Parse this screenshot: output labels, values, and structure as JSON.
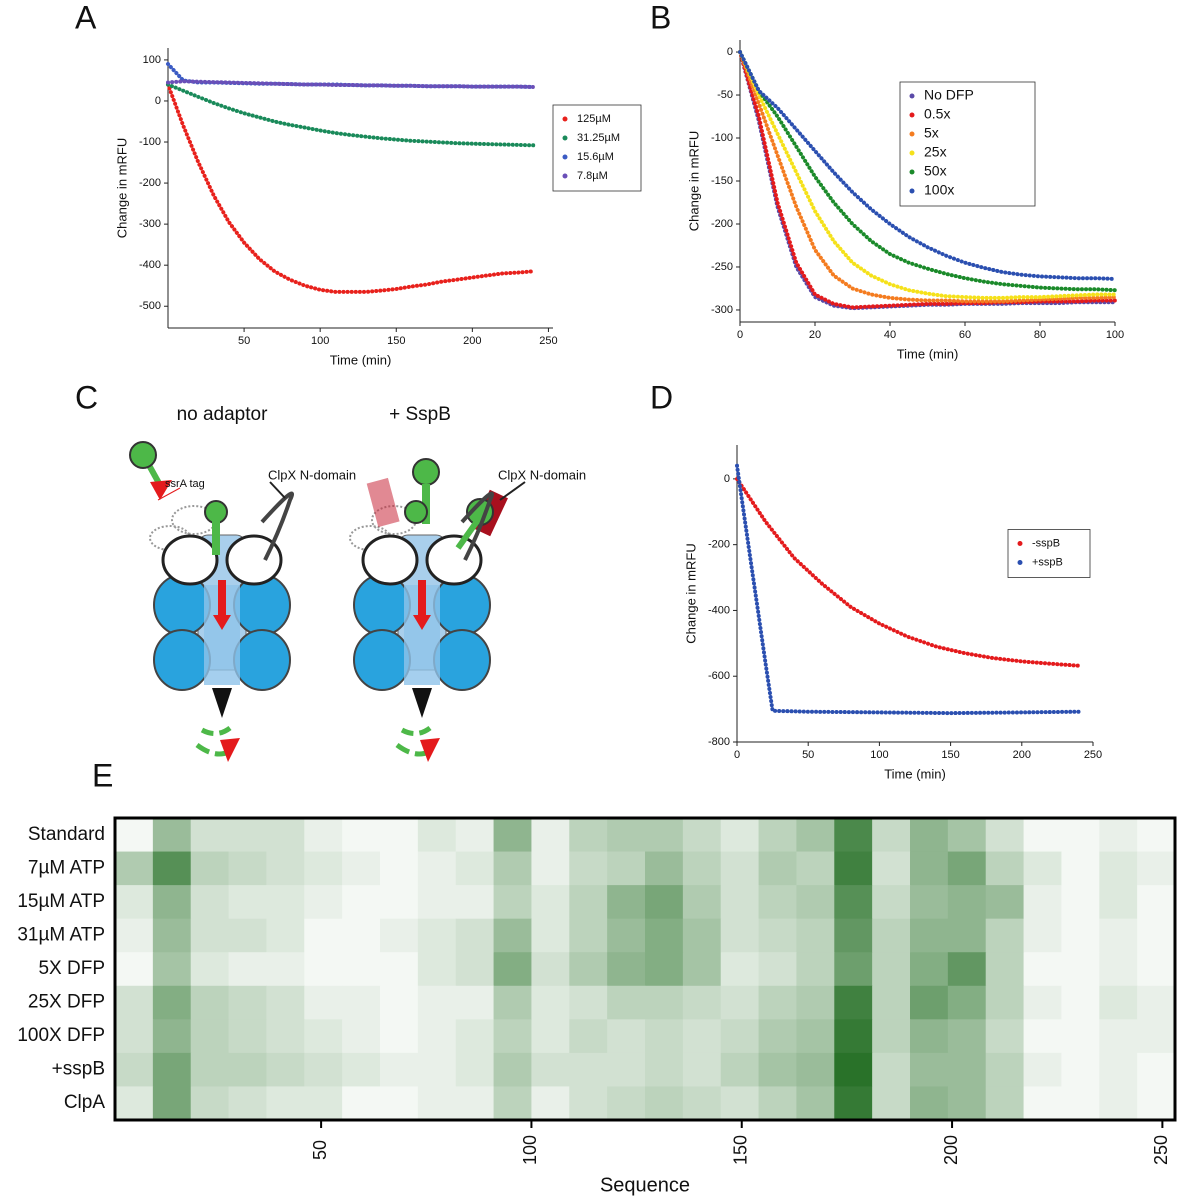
{
  "chart_data": [
    {
      "panel": "A",
      "type": "line",
      "xlabel": "Time (min)",
      "ylabel": "Change in mRFU",
      "xlim": [
        0,
        253
      ],
      "ylim": [
        -553,
        129
      ],
      "xticks": [
        50,
        100,
        150,
        200,
        250
      ],
      "yticks": [
        -500,
        -400,
        -300,
        -200,
        -100,
        0,
        100
      ],
      "legend": "outside right",
      "x": [
        0,
        10,
        20,
        30,
        40,
        50,
        60,
        70,
        80,
        90,
        100,
        110,
        120,
        130,
        140,
        150,
        160,
        170,
        180,
        190,
        200,
        210,
        220,
        230,
        240
      ],
      "series": [
        {
          "name": "125µM",
          "color": "#e8211c",
          "values": [
            40,
            -60,
            -150,
            -230,
            -295,
            -345,
            -385,
            -415,
            -435,
            -450,
            -460,
            -465,
            -465,
            -465,
            -462,
            -458,
            -452,
            -447,
            -440,
            -435,
            -430,
            -425,
            -420,
            -418,
            -415
          ]
        },
        {
          "name": "31.25µM",
          "color": "#1a8a5a",
          "values": [
            40,
            25,
            10,
            -5,
            -18,
            -30,
            -40,
            -50,
            -58,
            -65,
            -72,
            -78,
            -83,
            -87,
            -91,
            -94,
            -97,
            -99,
            -101,
            -103,
            -104,
            -105,
            -106,
            -107,
            -108
          ]
        },
        {
          "name": "15.6µM",
          "color": "#3b5bc4",
          "values": [
            90,
            50,
            45,
            45,
            44,
            43,
            42,
            42,
            41,
            40,
            40,
            40,
            39,
            38,
            38,
            37,
            37,
            36,
            36,
            36,
            35,
            35,
            35,
            35,
            34
          ]
        },
        {
          "name": "7.8µM",
          "color": "#6a4fb8",
          "values": [
            45,
            48,
            47,
            46,
            45,
            44,
            43,
            42,
            41,
            40,
            40,
            39,
            39,
            38,
            38,
            37,
            37,
            36,
            36,
            36,
            35,
            35,
            35,
            35,
            34
          ]
        }
      ]
    },
    {
      "panel": "B",
      "type": "line",
      "xlabel": "Time (min)",
      "ylabel": "Change in mRFU",
      "xlim": [
        0,
        100
      ],
      "ylim": [
        -314,
        14
      ],
      "xticks": [
        0,
        20,
        40,
        60,
        80,
        100
      ],
      "yticks": [
        -300,
        -250,
        -200,
        -150,
        -100,
        -50,
        0
      ],
      "legend": "upper right",
      "x": [
        0,
        5,
        10,
        15,
        20,
        25,
        30,
        35,
        40,
        45,
        50,
        55,
        60,
        65,
        70,
        75,
        80,
        85,
        90,
        95,
        100
      ],
      "series": [
        {
          "name": "No DFP",
          "color": "#5a4aa8",
          "values": [
            0,
            -80,
            -180,
            -250,
            -285,
            -295,
            -298,
            -297,
            -296,
            -295,
            -294,
            -294,
            -293,
            -293,
            -293,
            -292,
            -292,
            -292,
            -291,
            -291,
            -291
          ]
        },
        {
          "name": "0.5x",
          "color": "#e41a1c",
          "values": [
            0,
            -75,
            -175,
            -245,
            -282,
            -293,
            -297,
            -296,
            -295,
            -294,
            -293,
            -293,
            -292,
            -292,
            -291,
            -291,
            -290,
            -290,
            -290,
            -289,
            -289
          ]
        },
        {
          "name": "5x",
          "color": "#f47c20",
          "values": [
            0,
            -60,
            -120,
            -180,
            -230,
            -260,
            -275,
            -282,
            -286,
            -288,
            -289,
            -289,
            -290,
            -290,
            -290,
            -289,
            -288,
            -287,
            -286,
            -286,
            -285
          ]
        },
        {
          "name": "25x",
          "color": "#f5e11a",
          "values": [
            0,
            -50,
            -95,
            -140,
            -185,
            -220,
            -245,
            -260,
            -270,
            -277,
            -281,
            -284,
            -285,
            -286,
            -286,
            -285,
            -285,
            -284,
            -283,
            -282,
            -282
          ]
        },
        {
          "name": "50x",
          "color": "#1b8a2a",
          "values": [
            0,
            -45,
            -75,
            -110,
            -145,
            -175,
            -200,
            -220,
            -235,
            -245,
            -252,
            -258,
            -263,
            -267,
            -270,
            -272,
            -274,
            -275,
            -276,
            -276,
            -277
          ]
        },
        {
          "name": "100x",
          "color": "#2b4fb0",
          "values": [
            0,
            -45,
            -65,
            -90,
            -115,
            -140,
            -163,
            -183,
            -200,
            -215,
            -227,
            -237,
            -245,
            -251,
            -256,
            -259,
            -261,
            -262,
            -263,
            -263,
            -264
          ]
        }
      ]
    },
    {
      "panel": "D",
      "type": "line",
      "xlabel": "Time (min)",
      "ylabel": "Change in mRFU",
      "xlim": [
        0,
        250
      ],
      "ylim": [
        -800,
        103
      ],
      "xticks": [
        0,
        50,
        100,
        150,
        200,
        250
      ],
      "yticks": [
        -800,
        -600,
        -400,
        -200,
        0
      ],
      "legend": "center right",
      "series": [
        {
          "name": "-sspB",
          "color": "#e41a1c",
          "x": [
            0,
            20,
            40,
            60,
            80,
            100,
            120,
            140,
            160,
            180,
            200,
            220,
            240
          ],
          "values": [
            0,
            -130,
            -240,
            -320,
            -390,
            -440,
            -480,
            -510,
            -530,
            -545,
            -555,
            -562,
            -568
          ]
        },
        {
          "name": "+sspB",
          "color": "#2b4fb0",
          "x": [
            0,
            5,
            10,
            15,
            20,
            25,
            50,
            100,
            150,
            200,
            240
          ],
          "values": [
            40,
            -110,
            -260,
            -410,
            -560,
            -705,
            -708,
            -710,
            -712,
            -710,
            -708
          ]
        }
      ]
    },
    {
      "panel": "E",
      "type": "heatmap",
      "xlabel": "Sequence",
      "xlim": [
        1,
        253
      ],
      "xticks": [
        50,
        100,
        150,
        200,
        250
      ],
      "color_min": "#ffffff",
      "color_max": "#1e6b1e",
      "bins": [
        1,
        10,
        19,
        28,
        37,
        46,
        55,
        64,
        73,
        82,
        91,
        100,
        109,
        118,
        127,
        136,
        145,
        154,
        163,
        172,
        181,
        190,
        199,
        208,
        217,
        226,
        235,
        244,
        253
      ],
      "rows": [
        "Standard",
        "7µM ATP",
        "15µM ATP",
        "31µM ATP",
        "5X DFP",
        "25X DFP",
        "100X DFP",
        "+sspB",
        "ClpA"
      ],
      "values": [
        [
          0.05,
          0.45,
          0.2,
          0.2,
          0.2,
          0.1,
          0.05,
          0.05,
          0.15,
          0.1,
          0.5,
          0.1,
          0.3,
          0.35,
          0.35,
          0.25,
          0.15,
          0.3,
          0.4,
          0.8,
          0.25,
          0.5,
          0.4,
          0.2,
          0.05,
          0.05,
          0.1,
          0.05
        ],
        [
          0.35,
          0.75,
          0.3,
          0.25,
          0.2,
          0.15,
          0.1,
          0.05,
          0.1,
          0.15,
          0.35,
          0.1,
          0.25,
          0.3,
          0.45,
          0.3,
          0.2,
          0.35,
          0.3,
          0.85,
          0.2,
          0.5,
          0.6,
          0.3,
          0.15,
          0.05,
          0.15,
          0.1
        ],
        [
          0.15,
          0.5,
          0.2,
          0.15,
          0.15,
          0.1,
          0.05,
          0.05,
          0.1,
          0.1,
          0.3,
          0.15,
          0.3,
          0.5,
          0.6,
          0.35,
          0.2,
          0.3,
          0.35,
          0.75,
          0.25,
          0.45,
          0.5,
          0.45,
          0.1,
          0.05,
          0.15,
          0.05
        ],
        [
          0.1,
          0.45,
          0.2,
          0.2,
          0.15,
          0.05,
          0.05,
          0.1,
          0.15,
          0.2,
          0.45,
          0.15,
          0.3,
          0.45,
          0.55,
          0.4,
          0.2,
          0.25,
          0.3,
          0.7,
          0.3,
          0.5,
          0.5,
          0.3,
          0.1,
          0.05,
          0.1,
          0.05
        ],
        [
          0.05,
          0.4,
          0.15,
          0.1,
          0.1,
          0.05,
          0.05,
          0.05,
          0.15,
          0.2,
          0.55,
          0.2,
          0.35,
          0.5,
          0.55,
          0.4,
          0.15,
          0.2,
          0.3,
          0.65,
          0.3,
          0.55,
          0.7,
          0.3,
          0.05,
          0.05,
          0.1,
          0.05
        ],
        [
          0.2,
          0.55,
          0.3,
          0.25,
          0.2,
          0.1,
          0.1,
          0.05,
          0.1,
          0.1,
          0.35,
          0.15,
          0.2,
          0.3,
          0.3,
          0.25,
          0.2,
          0.3,
          0.35,
          0.85,
          0.3,
          0.65,
          0.55,
          0.3,
          0.1,
          0.05,
          0.15,
          0.1
        ],
        [
          0.2,
          0.5,
          0.3,
          0.25,
          0.2,
          0.15,
          0.1,
          0.05,
          0.1,
          0.15,
          0.3,
          0.15,
          0.25,
          0.2,
          0.25,
          0.2,
          0.25,
          0.35,
          0.4,
          0.9,
          0.3,
          0.5,
          0.45,
          0.25,
          0.05,
          0.05,
          0.1,
          0.1
        ],
        [
          0.25,
          0.6,
          0.3,
          0.3,
          0.25,
          0.2,
          0.15,
          0.1,
          0.1,
          0.15,
          0.35,
          0.2,
          0.2,
          0.2,
          0.25,
          0.2,
          0.3,
          0.4,
          0.45,
          0.95,
          0.25,
          0.45,
          0.45,
          0.3,
          0.1,
          0.05,
          0.1,
          0.05
        ],
        [
          0.15,
          0.6,
          0.25,
          0.2,
          0.15,
          0.15,
          0.05,
          0.05,
          0.1,
          0.1,
          0.3,
          0.1,
          0.2,
          0.25,
          0.3,
          0.25,
          0.2,
          0.3,
          0.4,
          0.9,
          0.25,
          0.5,
          0.45,
          0.3,
          0.05,
          0.05,
          0.1,
          0.05
        ]
      ]
    }
  ],
  "diagram": {
    "panel": "C",
    "left_title": "no adaptor",
    "right_title": "+ SspB",
    "ssra_label": "ssrA tag",
    "ndomain_labels": [
      "ClpX N-domain",
      "ClpX N-domain"
    ]
  }
}
